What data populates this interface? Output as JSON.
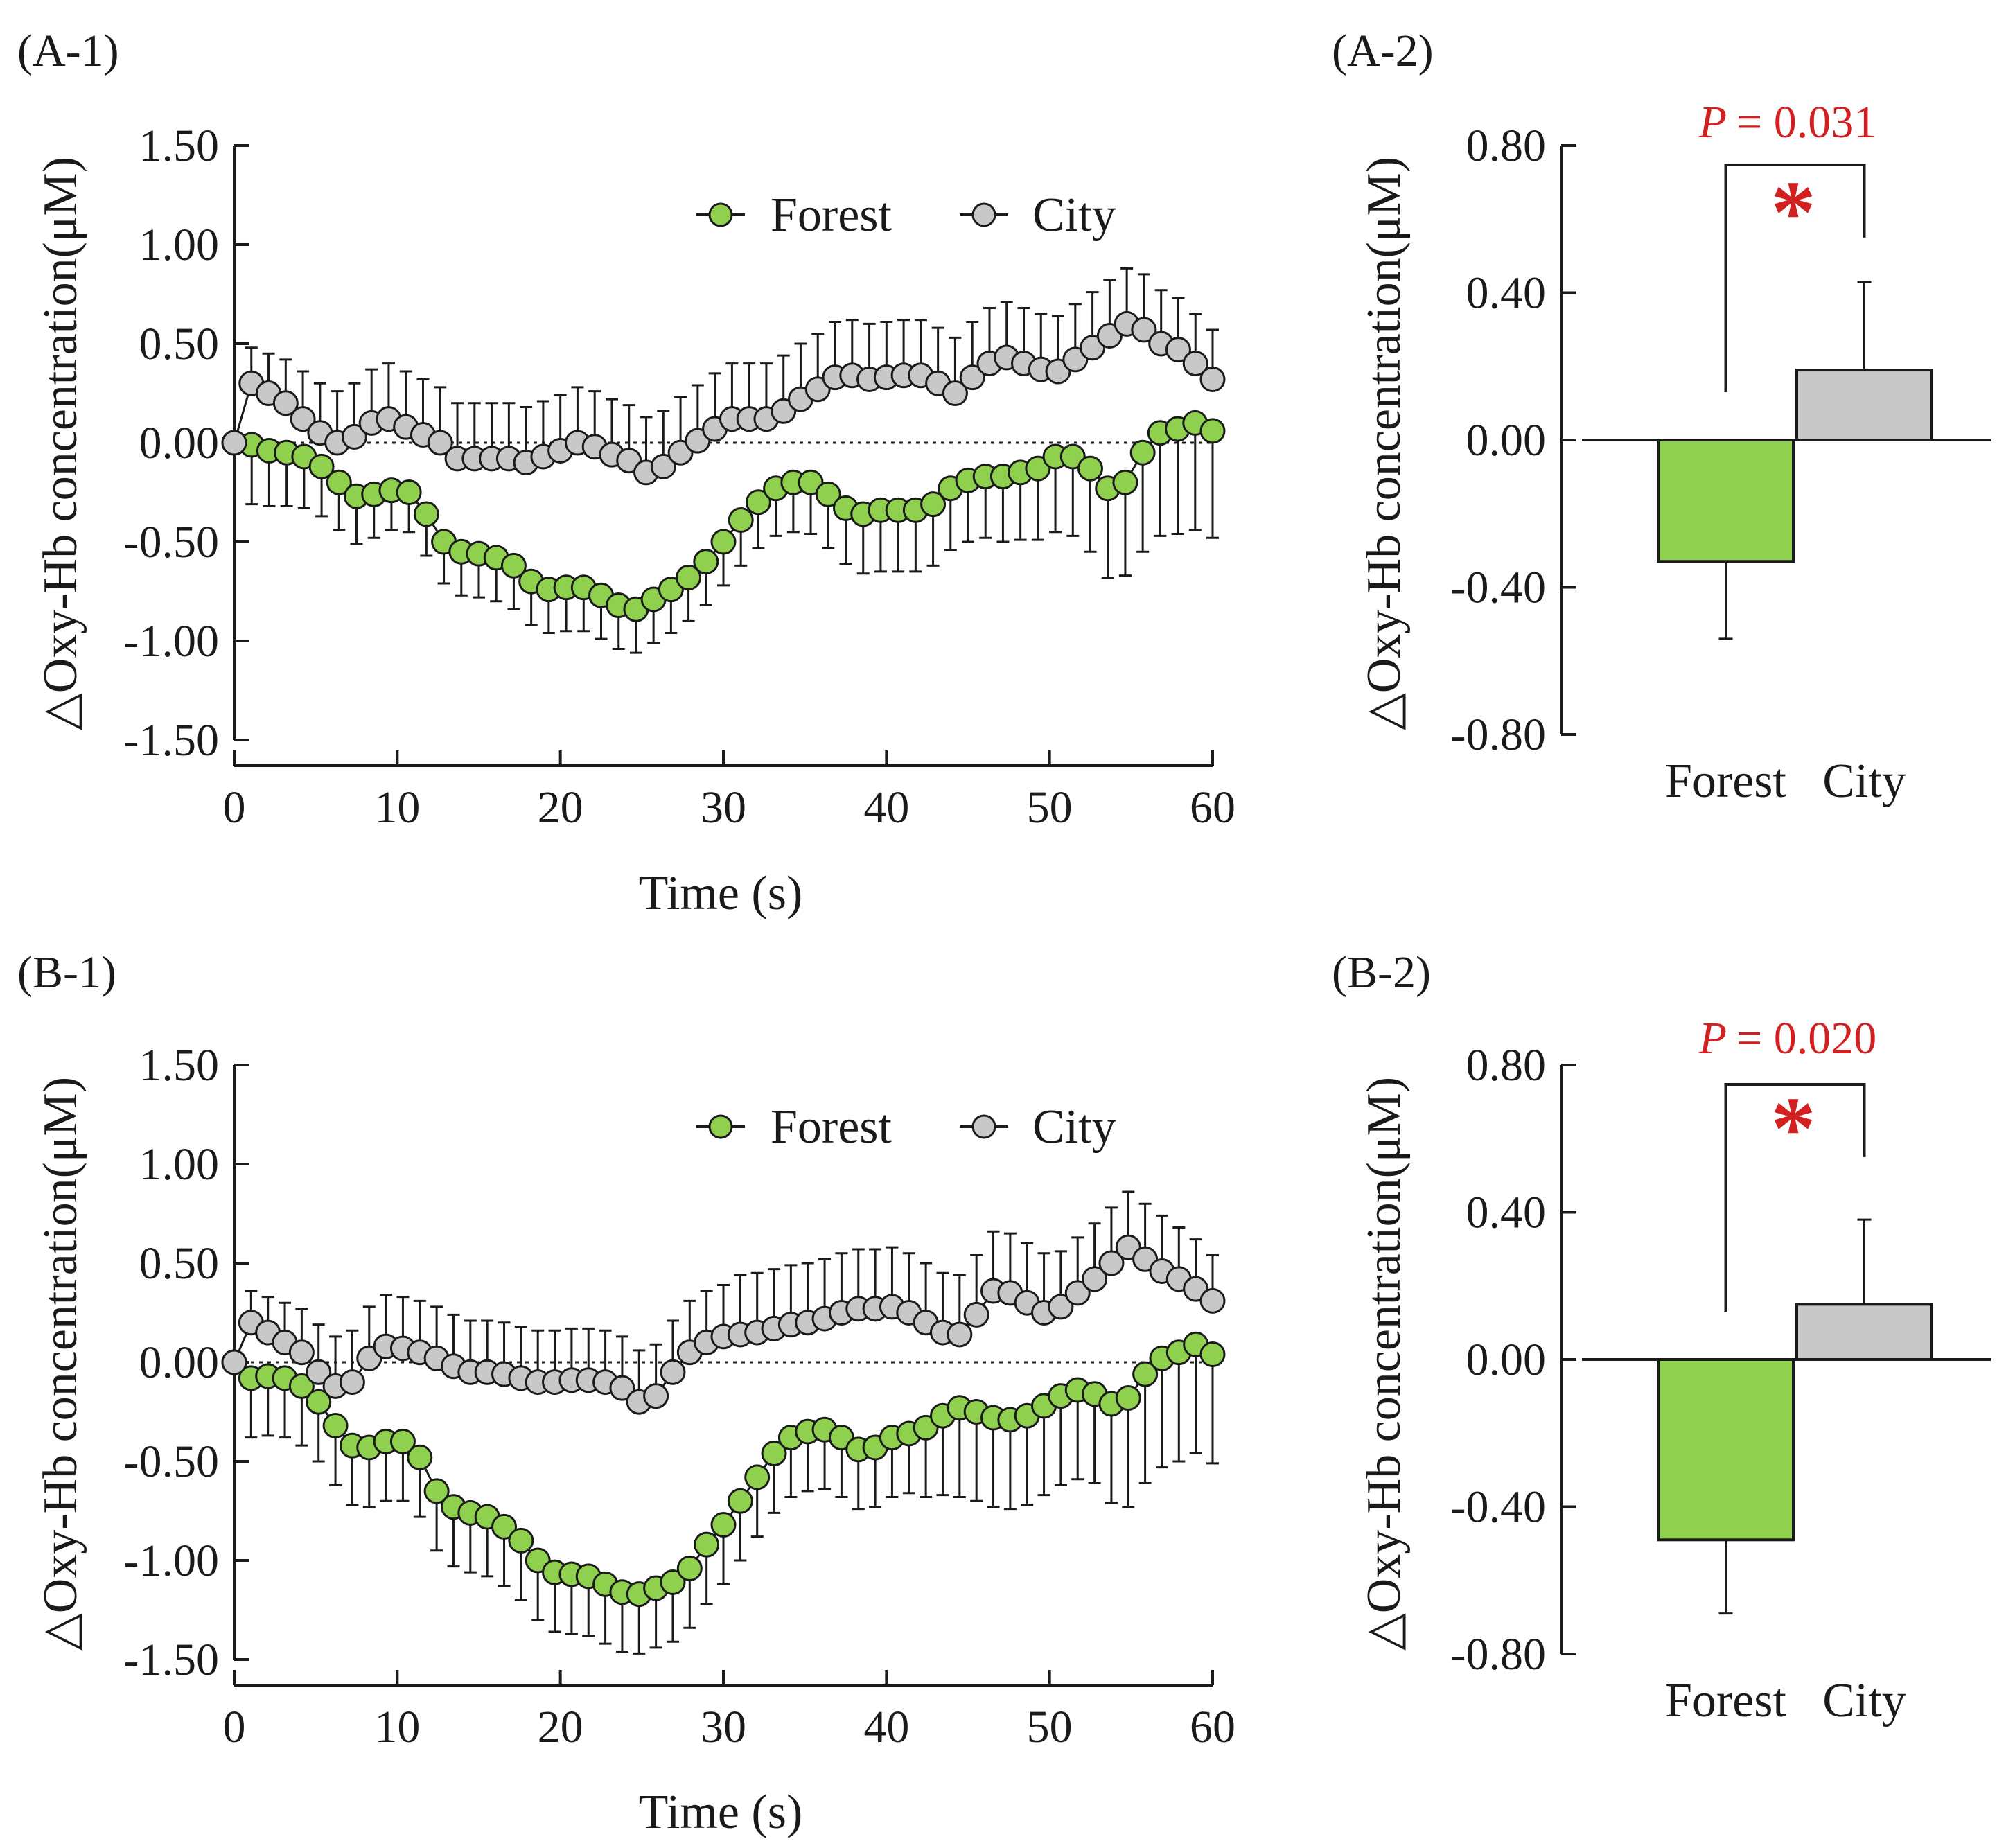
{
  "colors": {
    "forest": "#8fd14f",
    "city": "#c8c8c8",
    "outline": "#1a1a1a",
    "significance": "#d21f1f"
  },
  "chart_data": [
    {
      "id": "A-1",
      "panel_label": "(A-1)",
      "type": "line",
      "xlabel": "Time (s)",
      "ylabel": "△Oxy-Hb concentration(μM)",
      "xlim": [
        0,
        60
      ],
      "ylim": [
        -1.5,
        1.5
      ],
      "xticks": [
        "0",
        "10",
        "20",
        "30",
        "40",
        "50",
        "60"
      ],
      "yticks": [
        "1.50",
        "1.00",
        "0.50",
        "0.00",
        "-0.50",
        "-1.00",
        "-1.50"
      ],
      "legend_position": "top-right",
      "zero_line": "dotted",
      "series": [
        {
          "name": "Forest",
          "color": "#8fd14f",
          "values": [
            0.0,
            -0.01,
            -0.04,
            -0.05,
            -0.07,
            -0.12,
            -0.2,
            -0.27,
            -0.26,
            -0.24,
            -0.25,
            -0.36,
            -0.5,
            -0.55,
            -0.56,
            -0.58,
            -0.62,
            -0.7,
            -0.74,
            -0.73,
            -0.73,
            -0.77,
            -0.82,
            -0.84,
            -0.79,
            -0.74,
            -0.68,
            -0.6,
            -0.5,
            -0.39,
            -0.3,
            -0.23,
            -0.2,
            -0.2,
            -0.26,
            -0.33,
            -0.36,
            -0.34,
            -0.34,
            -0.34,
            -0.31,
            -0.23,
            -0.19,
            -0.17,
            -0.17,
            -0.15,
            -0.13,
            -0.07,
            -0.07,
            -0.13,
            -0.23,
            -0.2,
            -0.05,
            0.05,
            0.07,
            0.1,
            0.06
          ],
          "errors": [
            0.0,
            0.3,
            0.28,
            0.27,
            0.26,
            0.25,
            0.24,
            0.24,
            0.22,
            0.2,
            0.2,
            0.21,
            0.21,
            0.22,
            0.22,
            0.22,
            0.22,
            0.22,
            0.22,
            0.22,
            0.22,
            0.22,
            0.22,
            0.22,
            0.22,
            0.22,
            0.22,
            0.22,
            0.22,
            0.23,
            0.23,
            0.24,
            0.25,
            0.26,
            0.27,
            0.28,
            0.3,
            0.31,
            0.31,
            0.31,
            0.31,
            0.31,
            0.31,
            0.31,
            0.33,
            0.34,
            0.36,
            0.38,
            0.4,
            0.42,
            0.45,
            0.47,
            0.5,
            0.52,
            0.53,
            0.54,
            0.54
          ]
        },
        {
          "name": "City",
          "color": "#c8c8c8",
          "values": [
            0.0,
            0.3,
            0.25,
            0.2,
            0.12,
            0.05,
            0.0,
            0.03,
            0.1,
            0.12,
            0.08,
            0.04,
            0.0,
            -0.08,
            -0.08,
            -0.08,
            -0.08,
            -0.1,
            -0.07,
            -0.04,
            0.0,
            -0.02,
            -0.06,
            -0.09,
            -0.15,
            -0.12,
            -0.05,
            0.01,
            0.07,
            0.12,
            0.12,
            0.12,
            0.16,
            0.22,
            0.27,
            0.33,
            0.34,
            0.32,
            0.33,
            0.34,
            0.34,
            0.3,
            0.25,
            0.33,
            0.4,
            0.43,
            0.4,
            0.37,
            0.36,
            0.42,
            0.48,
            0.54,
            0.6,
            0.57,
            0.5,
            0.47,
            0.4,
            0.32
          ],
          "errors": [
            0.0,
            0.18,
            0.2,
            0.22,
            0.24,
            0.25,
            0.26,
            0.27,
            0.27,
            0.28,
            0.28,
            0.28,
            0.28,
            0.28,
            0.28,
            0.28,
            0.28,
            0.28,
            0.28,
            0.28,
            0.28,
            0.28,
            0.28,
            0.28,
            0.28,
            0.28,
            0.28,
            0.28,
            0.28,
            0.28,
            0.28,
            0.28,
            0.28,
            0.28,
            0.28,
            0.28,
            0.28,
            0.28,
            0.28,
            0.28,
            0.28,
            0.28,
            0.28,
            0.28,
            0.28,
            0.28,
            0.28,
            0.28,
            0.28,
            0.28,
            0.28,
            0.28,
            0.28,
            0.28,
            0.27,
            0.26,
            0.25,
            0.25
          ]
        }
      ]
    },
    {
      "id": "A-2",
      "panel_label": "(A-2)",
      "type": "bar",
      "ylabel": "△Oxy-Hb concentration(μM)",
      "ylim": [
        -0.8,
        0.8
      ],
      "yticks": [
        "0.80",
        "0.40",
        "0.00",
        "-0.40",
        "-0.80"
      ],
      "categories": [
        "Forest",
        "City"
      ],
      "values": [
        -0.33,
        0.19
      ],
      "errors": [
        0.21,
        0.24
      ],
      "significance": {
        "text": "P = 0.031",
        "p_label": "P",
        "p_value": "= 0.031",
        "marker": "*"
      }
    },
    {
      "id": "B-1",
      "panel_label": "(B-1)",
      "type": "line",
      "xlabel": "Time (s)",
      "ylabel": "△Oxy-Hb concentration(μM)",
      "xlim": [
        0,
        60
      ],
      "ylim": [
        -1.5,
        1.5
      ],
      "xticks": [
        "0",
        "10",
        "20",
        "30",
        "40",
        "50",
        "60"
      ],
      "yticks": [
        "1.50",
        "1.00",
        "0.50",
        "0.00",
        "-0.50",
        "-1.00",
        "-1.50"
      ],
      "legend_position": "top-right",
      "zero_line": "dotted",
      "series": [
        {
          "name": "Forest",
          "color": "#8fd14f",
          "values": [
            0.0,
            -0.08,
            -0.07,
            -0.08,
            -0.12,
            -0.2,
            -0.32,
            -0.42,
            -0.43,
            -0.4,
            -0.4,
            -0.48,
            -0.65,
            -0.73,
            -0.76,
            -0.78,
            -0.83,
            -0.9,
            -1.0,
            -1.06,
            -1.07,
            -1.08,
            -1.12,
            -1.16,
            -1.17,
            -1.14,
            -1.11,
            -1.04,
            -0.92,
            -0.82,
            -0.7,
            -0.58,
            -0.46,
            -0.38,
            -0.35,
            -0.34,
            -0.38,
            -0.44,
            -0.43,
            -0.38,
            -0.36,
            -0.33,
            -0.27,
            -0.23,
            -0.25,
            -0.28,
            -0.29,
            -0.27,
            -0.22,
            -0.17,
            -0.14,
            -0.16,
            -0.21,
            -0.18,
            -0.06,
            0.02,
            0.05,
            0.09,
            0.04
          ],
          "errors": [
            0.0,
            0.3,
            0.3,
            0.3,
            0.3,
            0.3,
            0.3,
            0.3,
            0.3,
            0.3,
            0.3,
            0.3,
            0.3,
            0.3,
            0.3,
            0.3,
            0.3,
            0.3,
            0.3,
            0.3,
            0.3,
            0.3,
            0.3,
            0.3,
            0.3,
            0.3,
            0.3,
            0.3,
            0.3,
            0.3,
            0.3,
            0.3,
            0.3,
            0.3,
            0.3,
            0.3,
            0.3,
            0.3,
            0.3,
            0.3,
            0.3,
            0.35,
            0.4,
            0.45,
            0.45,
            0.45,
            0.45,
            0.45,
            0.45,
            0.45,
            0.45,
            0.45,
            0.5,
            0.55,
            0.55,
            0.55,
            0.55,
            0.55,
            0.55
          ]
        },
        {
          "name": "City",
          "color": "#c8c8c8",
          "values": [
            0.0,
            0.2,
            0.15,
            0.1,
            0.05,
            -0.05,
            -0.12,
            -0.1,
            0.02,
            0.08,
            0.07,
            0.05,
            0.02,
            -0.02,
            -0.05,
            -0.05,
            -0.06,
            -0.08,
            -0.1,
            -0.1,
            -0.09,
            -0.09,
            -0.1,
            -0.13,
            -0.2,
            -0.17,
            -0.05,
            0.05,
            0.1,
            0.13,
            0.14,
            0.15,
            0.17,
            0.19,
            0.2,
            0.22,
            0.25,
            0.27,
            0.27,
            0.28,
            0.25,
            0.2,
            0.15,
            0.14,
            0.24,
            0.36,
            0.35,
            0.3,
            0.25,
            0.28,
            0.35,
            0.42,
            0.5,
            0.58,
            0.52,
            0.46,
            0.42,
            0.37,
            0.31
          ],
          "errors": [
            0.0,
            0.16,
            0.18,
            0.2,
            0.22,
            0.24,
            0.25,
            0.26,
            0.26,
            0.26,
            0.26,
            0.26,
            0.26,
            0.26,
            0.26,
            0.26,
            0.26,
            0.26,
            0.26,
            0.26,
            0.26,
            0.26,
            0.26,
            0.26,
            0.26,
            0.26,
            0.26,
            0.26,
            0.26,
            0.26,
            0.3,
            0.3,
            0.3,
            0.3,
            0.3,
            0.3,
            0.3,
            0.3,
            0.3,
            0.3,
            0.3,
            0.3,
            0.3,
            0.3,
            0.3,
            0.3,
            0.3,
            0.3,
            0.3,
            0.28,
            0.28,
            0.28,
            0.28,
            0.28,
            0.28,
            0.28,
            0.26,
            0.25,
            0.23
          ]
        }
      ]
    },
    {
      "id": "B-2",
      "panel_label": "(B-2)",
      "type": "bar",
      "ylabel": "△Oxy-Hb concentration(μM)",
      "ylim": [
        -0.8,
        0.8
      ],
      "yticks": [
        "0.80",
        "0.40",
        "0.00",
        "-0.40",
        "-0.80"
      ],
      "categories": [
        "Forest",
        "City"
      ],
      "values": [
        -0.49,
        0.15
      ],
      "errors": [
        0.2,
        0.23
      ],
      "significance": {
        "text": "P = 0.020",
        "p_label": "P",
        "p_value": "= 0.020",
        "marker": "*"
      }
    }
  ]
}
